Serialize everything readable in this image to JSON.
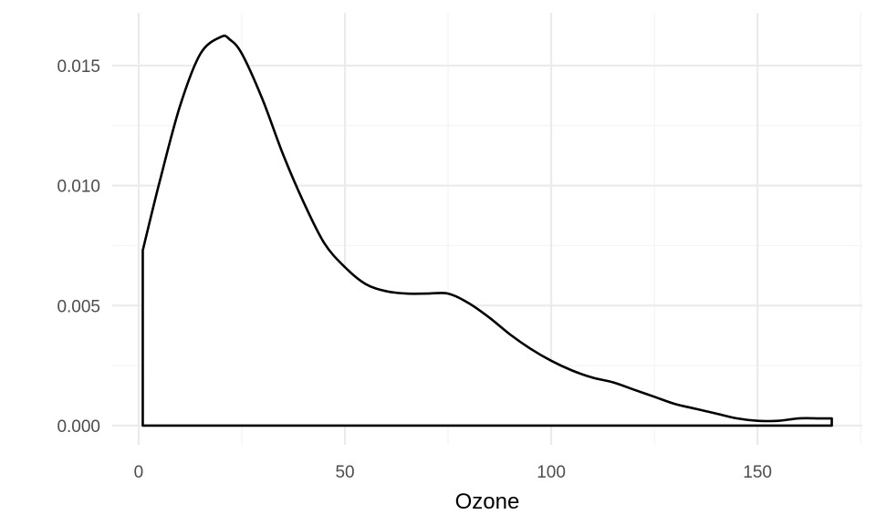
{
  "chart_data": {
    "type": "area",
    "xlabel": "Ozone",
    "ylabel": "",
    "title": "",
    "xlim": [
      -6.4,
      175.4
    ],
    "ylim": [
      -0.0008,
      0.0172
    ],
    "x_ticks": [
      0,
      50,
      100,
      150
    ],
    "x_tick_labels": [
      "0",
      "50",
      "100",
      "150"
    ],
    "y_ticks": [
      0,
      0.005,
      0.01,
      0.015
    ],
    "y_tick_labels": [
      "0.000",
      "0.005",
      "0.010",
      "0.015"
    ],
    "grid": true,
    "legend": "none",
    "series": [
      {
        "x": [
          1,
          5,
          10,
          15,
          20,
          22,
          25,
          30,
          35,
          40,
          45,
          50,
          55,
          60,
          65,
          70,
          75,
          80,
          85,
          90,
          95,
          100,
          105,
          110,
          115,
          120,
          125,
          130,
          135,
          140,
          145,
          150,
          155,
          160,
          165,
          168
        ],
        "values": [
          0.0073,
          0.0101,
          0.0133,
          0.0155,
          0.0162,
          0.0161,
          0.0155,
          0.0136,
          0.0113,
          0.0093,
          0.0076,
          0.0066,
          0.0059,
          0.0056,
          0.0055,
          0.0055,
          0.0055,
          0.0051,
          0.0045,
          0.0038,
          0.0032,
          0.0027,
          0.0023,
          0.002,
          0.0018,
          0.0015,
          0.0012,
          0.0009,
          0.0007,
          0.0005,
          0.0003,
          0.0002,
          0.0002,
          0.0003,
          0.0003,
          0.0003
        ]
      }
    ]
  },
  "colors": {
    "line": "#000000",
    "fill": "#ffffff",
    "grid_major": "#ebebeb",
    "grid_minor": "#f4f4f4",
    "tick_text": "#4d4d4d",
    "background": "#ffffff"
  }
}
